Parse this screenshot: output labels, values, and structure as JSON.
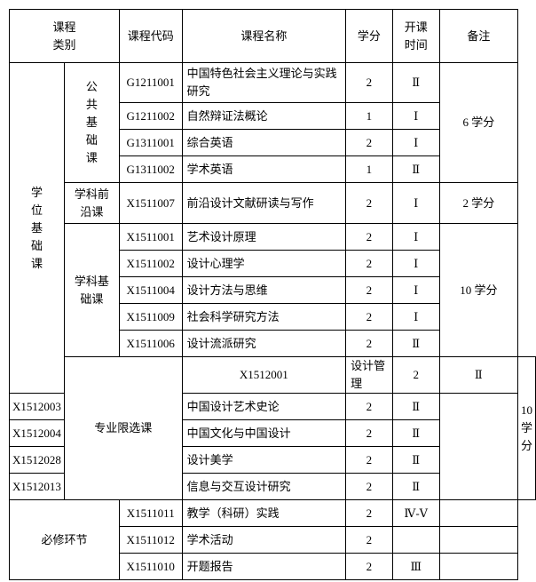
{
  "headers": {
    "category": "课程\n类别",
    "code": "课程代码",
    "name": "课程名称",
    "credit": "学分",
    "term": "开课\n时间",
    "remark": "备注"
  },
  "groups": {
    "degree": "学\n位\n基\n础\n课",
    "public": "公\n共\n基\n础\n课",
    "frontier": "学科前\n沿课",
    "subject": "学科基\n础课",
    "elective": "专业限选课",
    "required": "必修环节"
  },
  "remarks": {
    "public": "6 学分",
    "frontier": "2 学分",
    "subject": "10 学分",
    "elective": "10 学分"
  },
  "rows": [
    {
      "code": "G1211001",
      "name": "中国特色社会主义理论与实践\n研究",
      "credit": "2",
      "term": "Ⅱ"
    },
    {
      "code": "G1211002",
      "name": "自然辩证法概论",
      "credit": "1",
      "term": "Ⅰ"
    },
    {
      "code": "G1311001",
      "name": "综合英语",
      "credit": "2",
      "term": "Ⅰ"
    },
    {
      "code": "G1311002",
      "name": "学术英语",
      "credit": "1",
      "term": "Ⅱ"
    },
    {
      "code": "X1511007",
      "name": "前沿设计文献研读与写作",
      "credit": "2",
      "term": "Ⅰ"
    },
    {
      "code": "X1511001",
      "name": "艺术设计原理",
      "credit": "2",
      "term": "Ⅰ"
    },
    {
      "code": "X1511002",
      "name": "设计心理学",
      "credit": "2",
      "term": "Ⅰ"
    },
    {
      "code": "X1511004",
      "name": "设计方法与思维",
      "credit": "2",
      "term": "Ⅰ"
    },
    {
      "code": "X1511009",
      "name": "社会科学研究方法",
      "credit": "2",
      "term": "Ⅰ"
    },
    {
      "code": "X1511006",
      "name": "设计流派研究",
      "credit": "2",
      "term": "Ⅱ"
    },
    {
      "code": "X1512001",
      "name": "设计管理",
      "credit": "2",
      "term": "Ⅱ"
    },
    {
      "code": "X1512003",
      "name": "中国设计艺术史论",
      "credit": "2",
      "term": "Ⅱ"
    },
    {
      "code": "X1512004",
      "name": "中国文化与中国设计",
      "credit": "2",
      "term": "Ⅱ"
    },
    {
      "code": "X1512028",
      "name": "设计美学",
      "credit": "2",
      "term": "Ⅱ"
    },
    {
      "code": "X1512013",
      "name": "信息与交互设计研究",
      "credit": "2",
      "term": "Ⅱ"
    },
    {
      "code": "X1511011",
      "name": "教学（科研）实践",
      "credit": "2",
      "term": "Ⅳ-Ⅴ"
    },
    {
      "code": "X1511012",
      "name": "学术活动",
      "credit": "2",
      "term": ""
    },
    {
      "code": "X1511010",
      "name": "开题报告",
      "credit": "2",
      "term": "Ⅲ"
    }
  ]
}
